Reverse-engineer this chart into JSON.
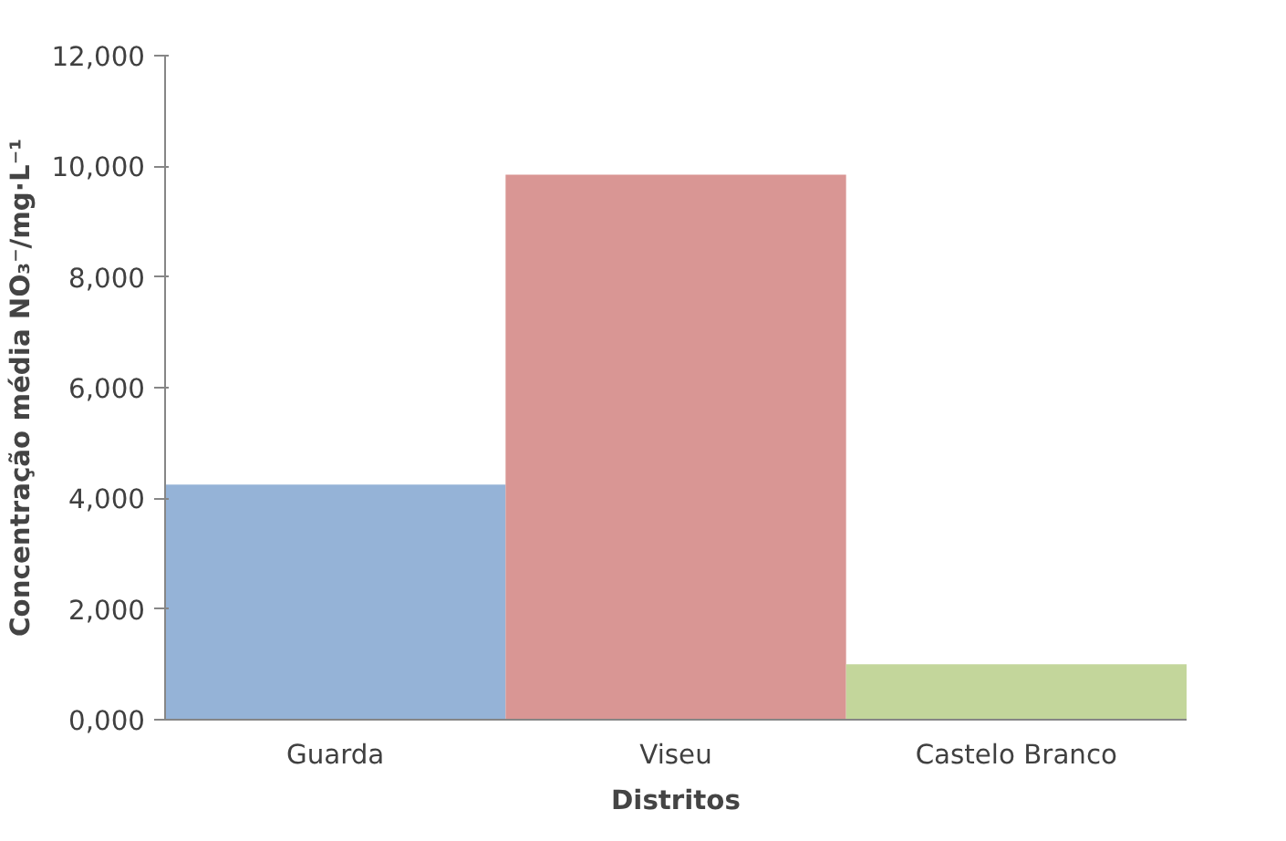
{
  "chart_data": {
    "type": "bar",
    "xlabel": "Distritos",
    "ylabel": "Concentração média NO₃⁻/mg·L⁻¹",
    "categories": [
      "Guarda",
      "Viseu",
      "Castelo Branco"
    ],
    "values": [
      4250,
      9850,
      1000
    ],
    "colors": [
      "#95b3d7",
      "#d99694",
      "#c3d69b"
    ],
    "ylim": [
      0,
      12000
    ],
    "yticks": [
      {
        "value": 0,
        "label": "0,000"
      },
      {
        "value": 2000,
        "label": "2,000"
      },
      {
        "value": 4000,
        "label": "4,000"
      },
      {
        "value": 6000,
        "label": "6,000"
      },
      {
        "value": 8000,
        "label": "8,000"
      },
      {
        "value": 10000,
        "label": "10,000"
      },
      {
        "value": 12000,
        "label": "12,000"
      }
    ],
    "grid": false
  }
}
